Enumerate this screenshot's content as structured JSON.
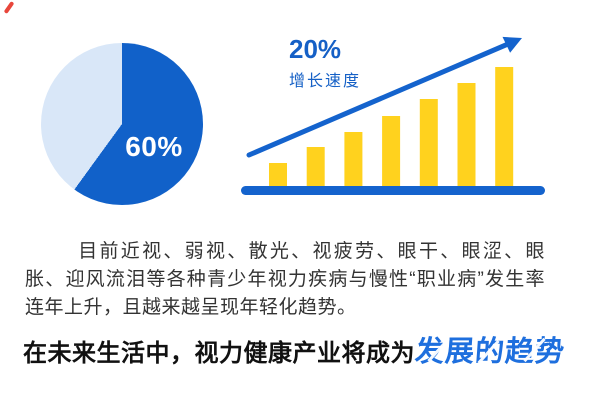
{
  "colors": {
    "primary_blue": "#1463cd",
    "pie_blue": "#1161c9",
    "pie_light_blue": "#d9e7f8",
    "bar_yellow": "#ffd21e",
    "highlight_blue": "#1e6fde",
    "body_text": "#333333",
    "headline_black": "#111111",
    "corner_red": "#e8463b",
    "background": "#ffffff"
  },
  "chart_data": [
    {
      "type": "pie",
      "title": "",
      "slices": [
        {
          "label": "60%",
          "value": 60,
          "color": "#1161c9"
        },
        {
          "label": "",
          "value": 40,
          "color": "#d9e7f8"
        }
      ],
      "data_label": "60%",
      "data_label_color": "#ffffff",
      "start_angle_deg": 0,
      "direction": "clockwise"
    },
    {
      "type": "bar",
      "categories": [
        "1",
        "2",
        "3",
        "4",
        "5",
        "6",
        "7"
      ],
      "values": [
        25,
        41,
        56,
        72,
        89,
        105,
        121
      ],
      "value_unit": "relative-height-px",
      "bar_color": "#ffd21e",
      "baseline_color": "#1463cd",
      "trend_arrow": true,
      "arrow_color": "#1463cd",
      "grid": false,
      "axes_labeled": false,
      "annotation": {
        "line1": "20%",
        "line2": "增长速度",
        "color": "#1560c6"
      }
    }
  ],
  "paragraph": {
    "text": "目前近视、弱视、散光、视疲劳、眼干、眼涩、眼胀、迎风流泪等各种青少年视力疾病与慢性“职业病”发生率连年上升，且越来越呈现年轻化趋势。"
  },
  "headline": {
    "prefix": "在未来生活中，视力健康产业将成为",
    "highlight": "发展的趋势",
    "highlight_color": "#1e6fde"
  }
}
